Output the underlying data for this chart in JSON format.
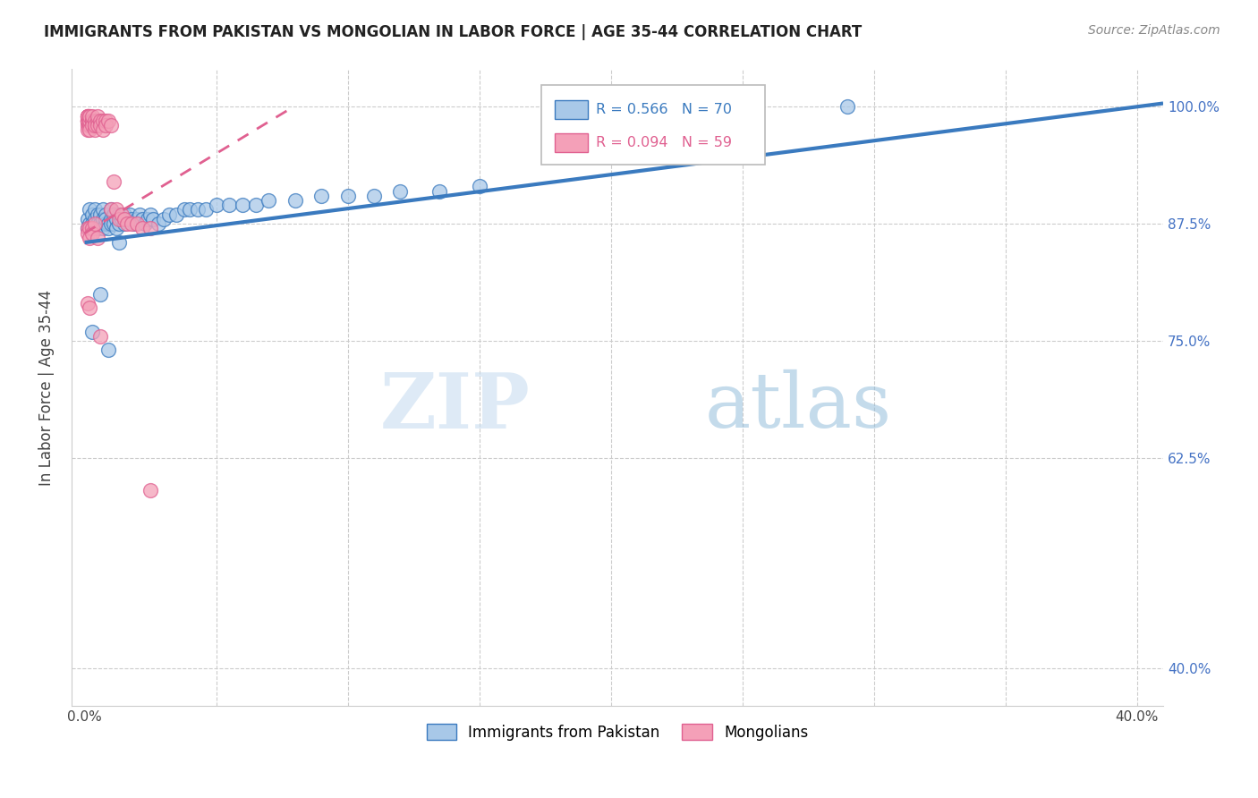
{
  "title": "IMMIGRANTS FROM PAKISTAN VS MONGOLIAN IN LABOR FORCE | AGE 35-44 CORRELATION CHART",
  "source": "Source: ZipAtlas.com",
  "ylabel": "In Labor Force | Age 35-44",
  "legend_blue_label": "Immigrants from Pakistan",
  "legend_pink_label": "Mongolians",
  "blue_color": "#a8c8e8",
  "pink_color": "#f4a0b8",
  "blue_line_color": "#3a7abf",
  "pink_line_color": "#e06090",
  "watermark_zip": "ZIP",
  "watermark_atlas": "atlas",
  "pakistan_x": [
    0.001,
    0.001,
    0.002,
    0.002,
    0.003,
    0.003,
    0.003,
    0.004,
    0.004,
    0.005,
    0.005,
    0.005,
    0.006,
    0.006,
    0.007,
    0.007,
    0.007,
    0.008,
    0.008,
    0.008,
    0.009,
    0.009,
    0.01,
    0.01,
    0.01,
    0.011,
    0.011,
    0.012,
    0.012,
    0.013,
    0.013,
    0.014,
    0.015,
    0.015,
    0.016,
    0.017,
    0.018,
    0.019,
    0.02,
    0.021,
    0.022,
    0.023,
    0.024,
    0.025,
    0.026,
    0.028,
    0.03,
    0.032,
    0.035,
    0.038,
    0.04,
    0.043,
    0.046,
    0.05,
    0.055,
    0.06,
    0.065,
    0.07,
    0.08,
    0.09,
    0.1,
    0.11,
    0.12,
    0.135,
    0.15,
    0.003,
    0.006,
    0.009,
    0.013,
    0.29
  ],
  "pakistan_y": [
    0.88,
    0.87,
    0.89,
    0.875,
    0.885,
    0.875,
    0.87,
    0.89,
    0.88,
    0.885,
    0.875,
    0.87,
    0.885,
    0.875,
    0.89,
    0.88,
    0.87,
    0.885,
    0.875,
    0.88,
    0.875,
    0.87,
    0.89,
    0.88,
    0.875,
    0.885,
    0.875,
    0.88,
    0.87,
    0.885,
    0.875,
    0.88,
    0.885,
    0.875,
    0.88,
    0.885,
    0.88,
    0.875,
    0.88,
    0.885,
    0.88,
    0.875,
    0.88,
    0.885,
    0.88,
    0.875,
    0.88,
    0.885,
    0.885,
    0.89,
    0.89,
    0.89,
    0.89,
    0.895,
    0.895,
    0.895,
    0.895,
    0.9,
    0.9,
    0.905,
    0.905,
    0.905,
    0.91,
    0.91,
    0.915,
    0.76,
    0.8,
    0.74,
    0.855,
    1.0
  ],
  "mongolian_x": [
    0.001,
    0.001,
    0.001,
    0.001,
    0.001,
    0.001,
    0.001,
    0.001,
    0.001,
    0.001,
    0.001,
    0.002,
    0.002,
    0.002,
    0.002,
    0.002,
    0.002,
    0.002,
    0.003,
    0.003,
    0.003,
    0.003,
    0.004,
    0.004,
    0.004,
    0.005,
    0.005,
    0.005,
    0.006,
    0.006,
    0.007,
    0.007,
    0.008,
    0.008,
    0.009,
    0.01,
    0.01,
    0.011,
    0.012,
    0.013,
    0.014,
    0.015,
    0.016,
    0.018,
    0.02,
    0.022,
    0.025,
    0.001,
    0.001,
    0.002,
    0.002,
    0.003,
    0.003,
    0.004,
    0.005,
    0.001,
    0.002,
    0.006,
    0.025
  ],
  "mongolian_y": [
    0.99,
    0.985,
    0.99,
    0.985,
    0.985,
    0.98,
    0.985,
    0.99,
    0.975,
    0.985,
    0.99,
    0.99,
    0.985,
    0.985,
    0.98,
    0.985,
    0.99,
    0.975,
    0.985,
    0.985,
    0.98,
    0.99,
    0.985,
    0.975,
    0.98,
    0.985,
    0.98,
    0.99,
    0.985,
    0.98,
    0.985,
    0.975,
    0.985,
    0.98,
    0.985,
    0.98,
    0.89,
    0.92,
    0.89,
    0.88,
    0.885,
    0.88,
    0.875,
    0.875,
    0.875,
    0.87,
    0.87,
    0.87,
    0.865,
    0.87,
    0.86,
    0.87,
    0.865,
    0.875,
    0.86,
    0.79,
    0.785,
    0.755,
    0.59
  ],
  "ytick_vals": [
    1.0,
    0.875,
    0.75,
    0.625,
    0.4
  ],
  "ytick_labels": [
    "100.0%",
    "87.5%",
    "75.0%",
    "62.5%",
    "40.0%"
  ],
  "xlim": [
    -0.005,
    0.41
  ],
  "ylim": [
    0.36,
    1.04
  ]
}
